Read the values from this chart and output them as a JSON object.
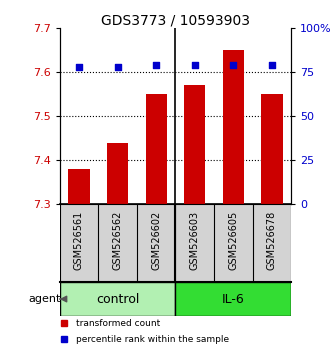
{
  "title": "GDS3773 / 10593903",
  "samples": [
    "GSM526561",
    "GSM526562",
    "GSM526602",
    "GSM526603",
    "GSM526605",
    "GSM526678"
  ],
  "bar_values": [
    7.38,
    7.44,
    7.55,
    7.57,
    7.65,
    7.55
  ],
  "percentile_values": [
    78,
    78,
    79,
    79,
    79,
    79
  ],
  "bar_color": "#cc0000",
  "dot_color": "#0000cc",
  "ylim_left": [
    7.3,
    7.7
  ],
  "ylim_right": [
    0,
    100
  ],
  "left_ytick_vals": [
    7.3,
    7.4,
    7.5,
    7.6,
    7.7
  ],
  "right_ytick_vals": [
    0,
    25,
    50,
    75,
    100
  ],
  "right_ytick_labels": [
    "0",
    "25",
    "50",
    "75",
    "100%"
  ],
  "groups": [
    {
      "label": "control",
      "indices": [
        0,
        1,
        2
      ],
      "color": "#b2f0b2"
    },
    {
      "label": "IL-6",
      "indices": [
        3,
        4,
        5
      ],
      "color": "#33dd33"
    }
  ],
  "agent_label": "agent",
  "legend_items": [
    {
      "label": "transformed count",
      "color": "#cc0000"
    },
    {
      "label": "percentile rank within the sample",
      "color": "#0000cc"
    }
  ],
  "bar_bottom": 7.3,
  "bar_width": 0.55,
  "background_plot": "#ffffff",
  "label_area_color": "#d3d3d3",
  "title_fontsize": 10,
  "tick_fontsize": 8,
  "label_fontsize": 7,
  "group_fontsize": 9
}
